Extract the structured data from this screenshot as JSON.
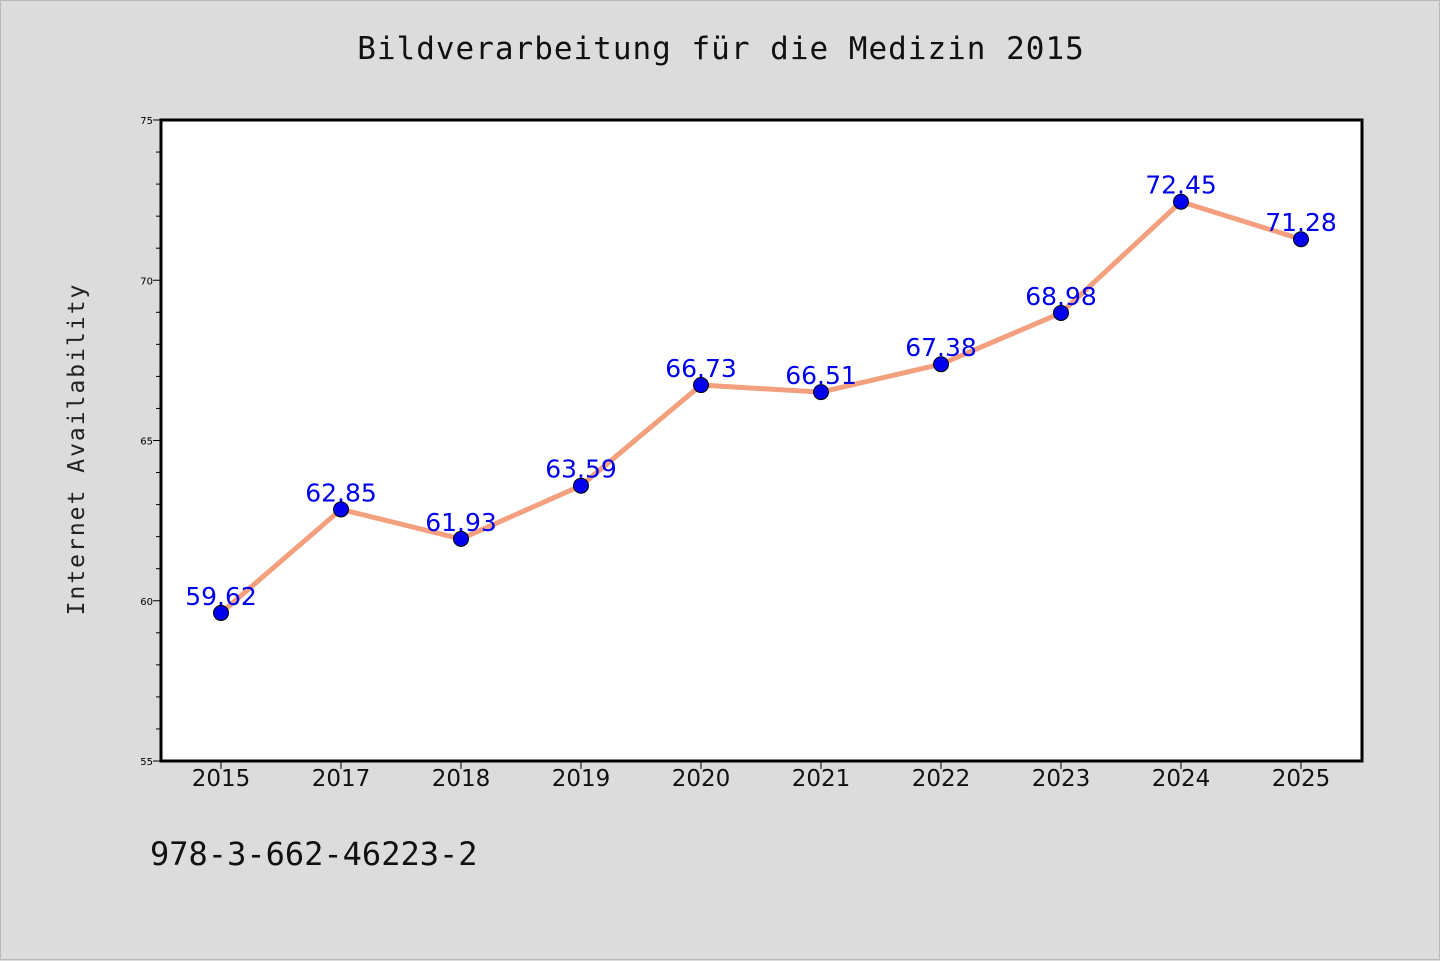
{
  "chart_data": {
    "type": "line",
    "title": "Bildverarbeitung für die Medizin 2015",
    "xlabel": "",
    "ylabel": "Internet Availability",
    "categories": [
      "2015",
      "2017",
      "2018",
      "2019",
      "2020",
      "2021",
      "2022",
      "2023",
      "2024",
      "2025"
    ],
    "series": [
      {
        "values": [
          59.62,
          62.85,
          61.93,
          63.59,
          66.73,
          66.51,
          67.38,
          68.98,
          72.45,
          71.28
        ],
        "labels": [
          "59.62",
          "62.85",
          "61.93",
          "63.59",
          "66.73",
          "66.51",
          "67.38",
          "68.98",
          "72.45",
          "71.28"
        ],
        "line_color": "#f4a07e",
        "marker_color": "#0000ee"
      }
    ],
    "ylim": [
      55,
      75
    ],
    "y_ticks": [
      "55",
      "60",
      "65",
      "70",
      "75"
    ],
    "grid": false,
    "legend": "none"
  },
  "footer": {
    "isbn": "978-3-662-46223-2"
  }
}
